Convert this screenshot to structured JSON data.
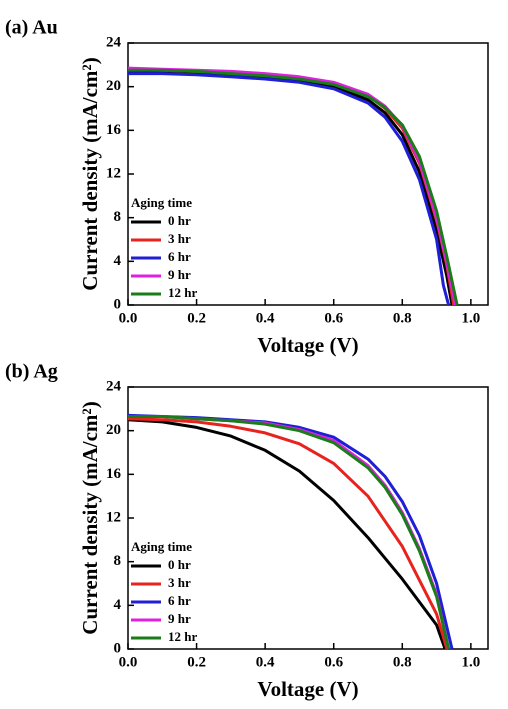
{
  "chart_data": [
    {
      "type": "line",
      "title": "(a) Au",
      "x_label": "Voltage (V)",
      "y_label": "Current density (mA/cm²)",
      "legend_title": "Aging time",
      "legend": "lower left",
      "xlim": [
        0,
        1.05
      ],
      "ylim": [
        0,
        24
      ],
      "xticks": [
        {
          "value": 0,
          "label": "0.0"
        },
        {
          "value": 0.2,
          "label": "0.2"
        },
        {
          "value": 0.4,
          "label": "0.4"
        },
        {
          "value": 0.6,
          "label": "0.6"
        },
        {
          "value": 0.8,
          "label": "0.8"
        },
        {
          "value": 1,
          "label": "1.0"
        }
      ],
      "yticks": [
        0,
        4,
        8,
        12,
        16,
        20,
        24
      ],
      "series": [
        {
          "name": "0 hr",
          "color": "#000000",
          "x": [
            0,
            0.1,
            0.2,
            0.3,
            0.4,
            0.5,
            0.6,
            0.7,
            0.75,
            0.8,
            0.85,
            0.9,
            0.93,
            0.945
          ],
          "values": [
            21.3,
            21.3,
            21.2,
            21.0,
            20.8,
            20.5,
            20.0,
            18.8,
            17.6,
            15.6,
            12.2,
            6.8,
            2.6,
            0
          ]
        },
        {
          "name": "3 hr",
          "color": "#e8231f",
          "x": [
            0,
            0.1,
            0.2,
            0.3,
            0.4,
            0.5,
            0.6,
            0.7,
            0.75,
            0.8,
            0.85,
            0.9,
            0.93,
            0.95
          ],
          "values": [
            21.6,
            21.5,
            21.4,
            21.3,
            21.1,
            20.8,
            20.3,
            19.2,
            18.0,
            16.2,
            13.0,
            7.8,
            3.6,
            0
          ]
        },
        {
          "name": "6 hr",
          "color": "#1f1fd6",
          "x": [
            0,
            0.1,
            0.2,
            0.3,
            0.4,
            0.5,
            0.6,
            0.7,
            0.75,
            0.8,
            0.85,
            0.9,
            0.92,
            0.935
          ],
          "values": [
            21.2,
            21.2,
            21.1,
            20.9,
            20.7,
            20.4,
            19.8,
            18.5,
            17.2,
            15.0,
            11.5,
            6.0,
            1.8,
            0
          ]
        },
        {
          "name": "9 hr",
          "color": "#e020e0",
          "x": [
            0,
            0.1,
            0.2,
            0.3,
            0.4,
            0.5,
            0.6,
            0.7,
            0.75,
            0.8,
            0.85,
            0.9,
            0.93,
            0.955
          ],
          "values": [
            21.7,
            21.6,
            21.5,
            21.4,
            21.2,
            20.9,
            20.4,
            19.3,
            18.2,
            16.4,
            13.2,
            8.0,
            3.8,
            0
          ]
        },
        {
          "name": "12 hr",
          "color": "#1a7d1a",
          "x": [
            0,
            0.1,
            0.2,
            0.3,
            0.4,
            0.5,
            0.6,
            0.7,
            0.75,
            0.8,
            0.85,
            0.9,
            0.93,
            0.96
          ],
          "values": [
            21.5,
            21.5,
            21.4,
            21.2,
            21.0,
            20.7,
            20.2,
            19.1,
            18.1,
            16.5,
            13.6,
            8.6,
            4.4,
            0
          ]
        }
      ]
    },
    {
      "type": "line",
      "title": "(b) Ag",
      "x_label": "Voltage (V)",
      "y_label": "Current density (mA/cm²)",
      "legend_title": "Aging time",
      "legend": "lower left",
      "xlim": [
        0,
        1.05
      ],
      "ylim": [
        0,
        24
      ],
      "xticks": [
        {
          "value": 0,
          "label": "0.0"
        },
        {
          "value": 0.2,
          "label": "0.2"
        },
        {
          "value": 0.4,
          "label": "0.4"
        },
        {
          "value": 0.6,
          "label": "0.6"
        },
        {
          "value": 0.8,
          "label": "0.8"
        },
        {
          "value": 1,
          "label": "1.0"
        }
      ],
      "yticks": [
        0,
        4,
        8,
        12,
        16,
        20,
        24
      ],
      "series": [
        {
          "name": "0 hr",
          "color": "#000000",
          "x": [
            0,
            0.1,
            0.2,
            0.3,
            0.4,
            0.5,
            0.6,
            0.7,
            0.8,
            0.9,
            0.925
          ],
          "values": [
            21.0,
            20.8,
            20.3,
            19.5,
            18.2,
            16.3,
            13.6,
            10.2,
            6.4,
            2.2,
            0
          ]
        },
        {
          "name": "3 hr",
          "color": "#e8231f",
          "x": [
            0,
            0.1,
            0.2,
            0.3,
            0.4,
            0.5,
            0.6,
            0.7,
            0.8,
            0.9,
            0.93
          ],
          "values": [
            21.1,
            21.0,
            20.8,
            20.4,
            19.8,
            18.8,
            17.0,
            14.0,
            9.4,
            3.2,
            0
          ]
        },
        {
          "name": "6 hr",
          "color": "#1f1fd6",
          "x": [
            0,
            0.1,
            0.2,
            0.3,
            0.4,
            0.5,
            0.6,
            0.7,
            0.75,
            0.8,
            0.85,
            0.9,
            0.945
          ],
          "values": [
            21.4,
            21.3,
            21.2,
            21.0,
            20.8,
            20.3,
            19.4,
            17.4,
            15.8,
            13.5,
            10.4,
            6.0,
            0
          ]
        },
        {
          "name": "9 hr",
          "color": "#e020e0",
          "x": [
            0,
            0.1,
            0.2,
            0.3,
            0.4,
            0.5,
            0.6,
            0.7,
            0.75,
            0.8,
            0.85,
            0.9,
            0.935
          ],
          "values": [
            21.3,
            21.3,
            21.1,
            20.9,
            20.7,
            20.1,
            19.1,
            16.8,
            15.0,
            12.5,
            9.2,
            5.0,
            0
          ]
        },
        {
          "name": "12 hr",
          "color": "#1a7d1a",
          "x": [
            0,
            0.1,
            0.2,
            0.3,
            0.4,
            0.5,
            0.6,
            0.7,
            0.75,
            0.8,
            0.85,
            0.9,
            0.935
          ],
          "values": [
            21.3,
            21.3,
            21.1,
            20.9,
            20.6,
            20.0,
            18.9,
            16.6,
            14.8,
            12.3,
            9.0,
            4.8,
            0
          ]
        }
      ]
    }
  ]
}
